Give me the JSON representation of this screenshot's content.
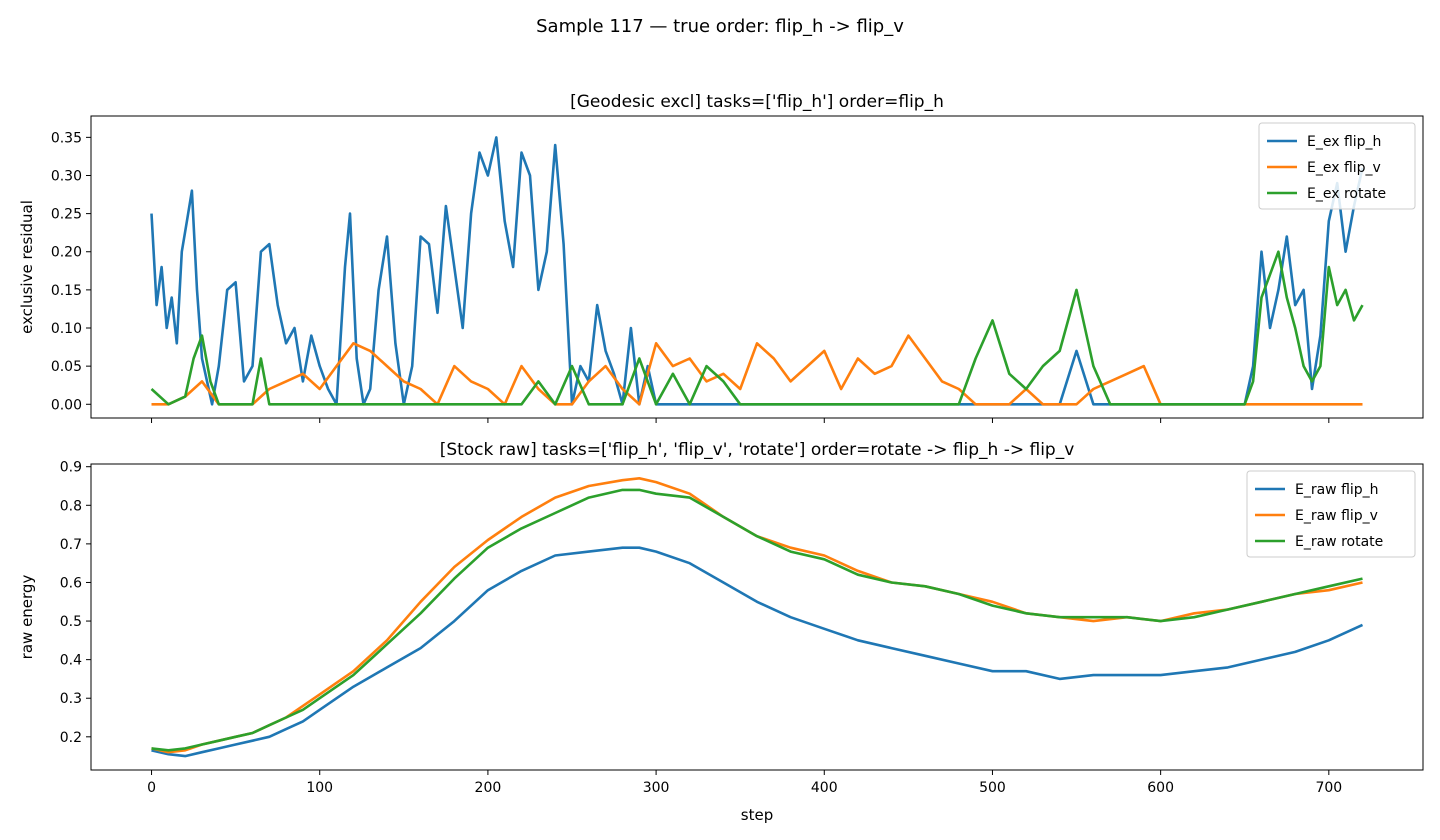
{
  "figure": {
    "suptitle": "Sample 117 — true order: flip_h -> flip_v"
  },
  "chart_data": [
    {
      "type": "line",
      "title": "[Geodesic excl] tasks=['flip_h'] order=flip_h",
      "xlabel": "",
      "ylabel": "exclusive residual",
      "xlim": [
        -36,
        756
      ],
      "ylim": [
        -0.018,
        0.378
      ],
      "xticks": [
        0,
        100,
        200,
        300,
        400,
        500,
        600,
        700
      ],
      "xtick_labels_visible": false,
      "yticks": [
        0.0,
        0.05,
        0.1,
        0.15,
        0.2,
        0.25,
        0.3,
        0.35
      ],
      "ytick_labels": [
        "0.00",
        "0.05",
        "0.10",
        "0.15",
        "0.20",
        "0.25",
        "0.30",
        "0.35"
      ],
      "grid": false,
      "legend": "top-right",
      "series": [
        {
          "name": "E_ex flip_h",
          "color": "#1f77b4",
          "x": [
            0,
            3,
            6,
            9,
            12,
            15,
            18,
            21,
            24,
            27,
            30,
            36,
            40,
            45,
            50,
            55,
            60,
            65,
            70,
            75,
            80,
            85,
            90,
            95,
            100,
            105,
            110,
            115,
            118,
            122,
            126,
            130,
            135,
            140,
            145,
            150,
            155,
            160,
            165,
            170,
            175,
            180,
            185,
            190,
            195,
            200,
            205,
            210,
            215,
            220,
            225,
            230,
            235,
            240,
            245,
            250,
            255,
            260,
            265,
            270,
            275,
            280,
            285,
            290,
            295,
            300,
            305,
            310,
            315,
            320,
            325,
            330,
            335,
            340,
            345,
            350,
            355,
            360,
            380,
            400,
            420,
            440,
            460,
            480,
            500,
            510,
            520,
            530,
            540,
            550,
            560,
            570,
            580,
            590,
            600,
            610,
            620,
            630,
            640,
            650,
            655,
            660,
            665,
            670,
            675,
            680,
            685,
            690,
            695,
            700,
            705,
            710,
            715,
            720
          ],
          "y": [
            0.25,
            0.13,
            0.18,
            0.1,
            0.14,
            0.08,
            0.2,
            0.24,
            0.28,
            0.15,
            0.06,
            0.0,
            0.05,
            0.15,
            0.16,
            0.03,
            0.05,
            0.2,
            0.21,
            0.13,
            0.08,
            0.1,
            0.03,
            0.09,
            0.05,
            0.02,
            0.0,
            0.18,
            0.25,
            0.06,
            0.0,
            0.02,
            0.15,
            0.22,
            0.08,
            0.0,
            0.05,
            0.22,
            0.21,
            0.12,
            0.26,
            0.18,
            0.1,
            0.25,
            0.33,
            0.3,
            0.35,
            0.24,
            0.18,
            0.33,
            0.3,
            0.15,
            0.2,
            0.34,
            0.21,
            0.0,
            0.05,
            0.03,
            0.13,
            0.07,
            0.04,
            0.0,
            0.1,
            0.0,
            0.05,
            0.0,
            0.0,
            0.0,
            0.0,
            0.0,
            0.0,
            0.0,
            0.0,
            0.0,
            0.0,
            0.0,
            0.0,
            0.0,
            0.0,
            0.0,
            0.0,
            0.0,
            0.0,
            0.0,
            0.0,
            0.0,
            0.0,
            0.0,
            0.0,
            0.07,
            0.0,
            0.0,
            0.0,
            0.0,
            0.0,
            0.0,
            0.0,
            0.0,
            0.0,
            0.0,
            0.05,
            0.2,
            0.1,
            0.15,
            0.22,
            0.13,
            0.15,
            0.02,
            0.09,
            0.24,
            0.29,
            0.2,
            0.26,
            0.31
          ]
        },
        {
          "name": "E_ex flip_v",
          "color": "#ff7f0e",
          "x": [
            0,
            10,
            20,
            30,
            40,
            50,
            60,
            70,
            80,
            90,
            100,
            110,
            120,
            130,
            140,
            150,
            160,
            170,
            180,
            190,
            200,
            210,
            220,
            230,
            240,
            250,
            260,
            270,
            280,
            290,
            300,
            310,
            320,
            330,
            340,
            350,
            360,
            370,
            380,
            390,
            400,
            410,
            420,
            430,
            440,
            450,
            460,
            470,
            480,
            490,
            500,
            510,
            520,
            530,
            540,
            550,
            560,
            570,
            580,
            590,
            600,
            610,
            620,
            630,
            640,
            650,
            660,
            670,
            680,
            690,
            700,
            710,
            720
          ],
          "y": [
            0.0,
            0.0,
            0.01,
            0.03,
            0.0,
            0.0,
            0.0,
            0.02,
            0.03,
            0.04,
            0.02,
            0.05,
            0.08,
            0.07,
            0.05,
            0.03,
            0.02,
            0.0,
            0.05,
            0.03,
            0.02,
            0.0,
            0.05,
            0.02,
            0.0,
            0.0,
            0.03,
            0.05,
            0.02,
            0.0,
            0.08,
            0.05,
            0.06,
            0.03,
            0.04,
            0.02,
            0.08,
            0.06,
            0.03,
            0.05,
            0.07,
            0.02,
            0.06,
            0.04,
            0.05,
            0.09,
            0.06,
            0.03,
            0.02,
            0.0,
            0.0,
            0.0,
            0.02,
            0.0,
            0.0,
            0.0,
            0.02,
            0.03,
            0.04,
            0.05,
            0.0,
            0.0,
            0.0,
            0.0,
            0.0,
            0.0,
            0.0,
            0.0,
            0.0,
            0.0,
            0.0,
            0.0,
            0.0
          ]
        },
        {
          "name": "E_ex rotate",
          "color": "#2ca02c",
          "x": [
            0,
            10,
            20,
            25,
            30,
            35,
            40,
            50,
            60,
            65,
            70,
            80,
            90,
            100,
            110,
            120,
            130,
            140,
            150,
            160,
            170,
            180,
            190,
            200,
            210,
            220,
            230,
            240,
            250,
            260,
            270,
            280,
            290,
            300,
            310,
            320,
            330,
            340,
            350,
            360,
            370,
            380,
            390,
            400,
            410,
            420,
            430,
            440,
            450,
            460,
            470,
            480,
            490,
            500,
            510,
            520,
            530,
            540,
            550,
            560,
            570,
            580,
            590,
            600,
            610,
            620,
            630,
            640,
            650,
            655,
            660,
            665,
            670,
            675,
            680,
            685,
            690,
            695,
            700,
            705,
            710,
            715,
            720
          ],
          "y": [
            0.02,
            0.0,
            0.01,
            0.06,
            0.09,
            0.03,
            0.0,
            0.0,
            0.0,
            0.06,
            0.0,
            0.0,
            0.0,
            0.0,
            0.0,
            0.0,
            0.0,
            0.0,
            0.0,
            0.0,
            0.0,
            0.0,
            0.0,
            0.0,
            0.0,
            0.0,
            0.03,
            0.0,
            0.05,
            0.0,
            0.0,
            0.0,
            0.06,
            0.0,
            0.04,
            0.0,
            0.05,
            0.03,
            0.0,
            0.0,
            0.0,
            0.0,
            0.0,
            0.0,
            0.0,
            0.0,
            0.0,
            0.0,
            0.0,
            0.0,
            0.0,
            0.0,
            0.06,
            0.11,
            0.04,
            0.02,
            0.05,
            0.07,
            0.15,
            0.05,
            0.0,
            0.0,
            0.0,
            0.0,
            0.0,
            0.0,
            0.0,
            0.0,
            0.0,
            0.03,
            0.14,
            0.17,
            0.2,
            0.14,
            0.1,
            0.05,
            0.03,
            0.05,
            0.18,
            0.13,
            0.15,
            0.11,
            0.13
          ]
        }
      ]
    },
    {
      "type": "line",
      "title": "[Stock raw] tasks=['flip_h', 'flip_v', 'rotate'] order=rotate -> flip_h -> flip_v",
      "xlabel": "step",
      "ylabel": "raw energy",
      "xlim": [
        -36,
        756
      ],
      "ylim": [
        0.114,
        0.907
      ],
      "xticks": [
        0,
        100,
        200,
        300,
        400,
        500,
        600,
        700
      ],
      "xtick_labels": [
        "0",
        "100",
        "200",
        "300",
        "400",
        "500",
        "600",
        "700"
      ],
      "yticks": [
        0.2,
        0.3,
        0.4,
        0.5,
        0.6,
        0.7,
        0.8,
        0.9
      ],
      "ytick_labels": [
        "0.2",
        "0.3",
        "0.4",
        "0.5",
        "0.6",
        "0.7",
        "0.8",
        "0.9"
      ],
      "grid": false,
      "legend": "top-right",
      "series": [
        {
          "name": "E_raw flip_h",
          "color": "#1f77b4",
          "x": [
            0,
            10,
            20,
            30,
            40,
            50,
            60,
            70,
            80,
            90,
            100,
            120,
            140,
            160,
            180,
            200,
            220,
            240,
            260,
            280,
            290,
            300,
            320,
            340,
            360,
            380,
            400,
            420,
            440,
            460,
            480,
            500,
            520,
            540,
            560,
            580,
            600,
            620,
            640,
            660,
            680,
            700,
            720
          ],
          "y": [
            0.165,
            0.155,
            0.15,
            0.16,
            0.17,
            0.18,
            0.19,
            0.2,
            0.22,
            0.24,
            0.27,
            0.33,
            0.38,
            0.43,
            0.5,
            0.58,
            0.63,
            0.67,
            0.68,
            0.69,
            0.69,
            0.68,
            0.65,
            0.6,
            0.55,
            0.51,
            0.48,
            0.45,
            0.43,
            0.41,
            0.39,
            0.37,
            0.37,
            0.35,
            0.36,
            0.36,
            0.36,
            0.37,
            0.38,
            0.4,
            0.42,
            0.45,
            0.49
          ]
        },
        {
          "name": "E_raw flip_v",
          "color": "#ff7f0e",
          "x": [
            0,
            10,
            20,
            30,
            40,
            50,
            60,
            70,
            80,
            90,
            100,
            120,
            140,
            160,
            180,
            200,
            220,
            240,
            260,
            280,
            290,
            300,
            320,
            340,
            360,
            380,
            400,
            420,
            440,
            460,
            480,
            500,
            520,
            540,
            560,
            580,
            600,
            620,
            640,
            660,
            680,
            700,
            720
          ],
          "y": [
            0.17,
            0.16,
            0.165,
            0.18,
            0.19,
            0.2,
            0.21,
            0.23,
            0.25,
            0.28,
            0.31,
            0.37,
            0.45,
            0.55,
            0.64,
            0.71,
            0.77,
            0.82,
            0.85,
            0.865,
            0.87,
            0.86,
            0.83,
            0.77,
            0.72,
            0.69,
            0.67,
            0.63,
            0.6,
            0.59,
            0.57,
            0.55,
            0.52,
            0.51,
            0.5,
            0.51,
            0.5,
            0.52,
            0.53,
            0.55,
            0.57,
            0.58,
            0.6
          ]
        },
        {
          "name": "E_raw rotate",
          "color": "#2ca02c",
          "x": [
            0,
            10,
            20,
            30,
            40,
            50,
            60,
            70,
            80,
            90,
            100,
            120,
            140,
            160,
            180,
            200,
            220,
            240,
            260,
            280,
            290,
            300,
            320,
            340,
            360,
            380,
            400,
            420,
            440,
            460,
            480,
            500,
            520,
            540,
            560,
            580,
            600,
            620,
            640,
            660,
            680,
            700,
            720
          ],
          "y": [
            0.17,
            0.165,
            0.17,
            0.18,
            0.19,
            0.2,
            0.21,
            0.23,
            0.25,
            0.27,
            0.3,
            0.36,
            0.44,
            0.52,
            0.61,
            0.69,
            0.74,
            0.78,
            0.82,
            0.84,
            0.84,
            0.83,
            0.82,
            0.77,
            0.72,
            0.68,
            0.66,
            0.62,
            0.6,
            0.59,
            0.57,
            0.54,
            0.52,
            0.51,
            0.51,
            0.51,
            0.5,
            0.51,
            0.53,
            0.55,
            0.57,
            0.59,
            0.61
          ]
        }
      ]
    }
  ]
}
